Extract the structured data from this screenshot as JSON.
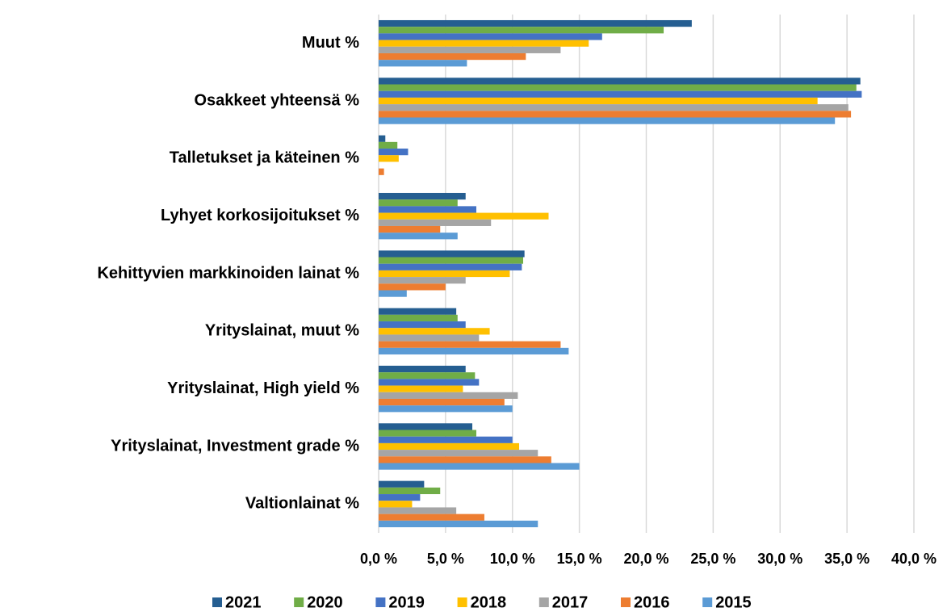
{
  "chart_data": {
    "type": "hbar",
    "categories": [
      "Muut %",
      "Osakkeet yhteensä %",
      "Talletukset ja käteinen %",
      "Lyhyet korkosijoitukset %",
      "Kehittyvien markkinoiden lainat %",
      "Yrityslainat, muut %",
      "Yrityslainat, High yield %",
      "Yrityslainat, Investment grade %",
      "Valtionlainat %"
    ],
    "series": [
      {
        "name": "2021",
        "color": "#255e91",
        "values": [
          23.4,
          36.0,
          0.5,
          6.5,
          10.9,
          5.8,
          6.5,
          7.0,
          3.4
        ]
      },
      {
        "name": "2020",
        "color": "#70ad47",
        "values": [
          21.3,
          35.7,
          1.4,
          5.9,
          10.8,
          5.9,
          7.2,
          7.3,
          4.6
        ]
      },
      {
        "name": "2019",
        "color": "#4472c4",
        "values": [
          16.7,
          36.1,
          2.2,
          7.3,
          10.7,
          6.5,
          7.5,
          10.0,
          3.1
        ]
      },
      {
        "name": "2018",
        "color": "#ffc000",
        "values": [
          15.7,
          32.8,
          1.5,
          12.7,
          9.8,
          8.3,
          6.3,
          10.5,
          2.5
        ]
      },
      {
        "name": "2017",
        "color": "#a5a5a5",
        "values": [
          13.6,
          35.1,
          0,
          8.4,
          6.5,
          7.5,
          10.4,
          11.9,
          5.8
        ]
      },
      {
        "name": "2016",
        "color": "#ed7d31",
        "values": [
          11.0,
          35.3,
          0.4,
          4.6,
          5.0,
          13.6,
          9.4,
          12.9,
          7.9
        ]
      },
      {
        "name": "2015",
        "color": "#5b9bd5",
        "values": [
          6.6,
          34.1,
          0,
          5.9,
          2.1,
          14.2,
          10.0,
          15.0,
          11.9
        ]
      }
    ],
    "xlim": [
      0,
      40
    ],
    "xticks": [
      {
        "value": 0,
        "label": "0,0 %"
      },
      {
        "value": 5,
        "label": "5,0 %"
      },
      {
        "value": 10,
        "label": "10,0 %"
      },
      {
        "value": 15,
        "label": "15,0 %"
      },
      {
        "value": 20,
        "label": "20,0 %"
      },
      {
        "value": 25,
        "label": "25,0 %"
      },
      {
        "value": 30,
        "label": "30,0 %"
      },
      {
        "value": 35,
        "label": "35,0 %"
      },
      {
        "value": 40,
        "label": "40,0 %"
      }
    ],
    "grid": true,
    "legend": "bottom"
  }
}
